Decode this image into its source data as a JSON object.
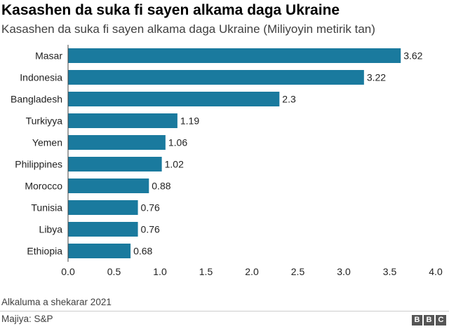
{
  "header": {
    "title": "Kasashen da suka fi sayen alkama daga Ukraine",
    "subtitle": "Kasashen da suka fi sayen alkama daga Ukraine (Miliyoyin metirik tan)"
  },
  "footer": {
    "note": "Alkaluma a shekarar 2021",
    "source": "Majiya: S&P",
    "logo_letters": [
      "B",
      "B",
      "C"
    ]
  },
  "colors": {
    "bar": "#1a7a9e",
    "text": "#222222"
  },
  "chart_data": {
    "type": "bar",
    "orientation": "horizontal",
    "title": "Kasashen da suka fi sayen alkama daga Ukraine",
    "subtitle": "Kasashen da suka fi sayen alkama daga Ukraine (Miliyoyin metirik tan)",
    "categories": [
      "Masar",
      "Indonesia",
      "Bangladesh",
      "Turkiyya",
      "Yemen",
      "Philippines",
      "Morocco",
      "Tunisia",
      "Libya",
      "Ethiopia"
    ],
    "values": [
      3.62,
      3.22,
      2.3,
      1.19,
      1.06,
      1.02,
      0.88,
      0.76,
      0.76,
      0.68
    ],
    "value_labels": [
      "3.62",
      "3.22",
      "2.3",
      "1.19",
      "1.06",
      "1.02",
      "0.88",
      "0.76",
      "0.76",
      "0.68"
    ],
    "xlim": [
      0,
      4
    ],
    "xticks": [
      "0.0",
      "0.5",
      "1.0",
      "1.5",
      "2.0",
      "2.5",
      "3.0",
      "3.5",
      "4.0"
    ],
    "xlabel": "",
    "ylabel": "",
    "grid": false
  }
}
